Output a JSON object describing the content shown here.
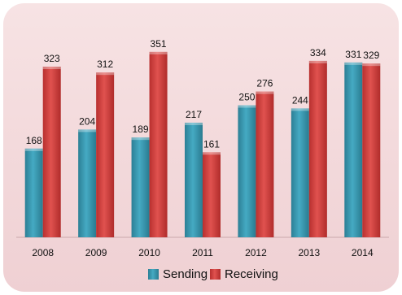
{
  "chart_data": {
    "type": "bar",
    "categories": [
      "2008",
      "2009",
      "2010",
      "2011",
      "2012",
      "2013",
      "2014"
    ],
    "series": [
      {
        "name": "Sending",
        "values": [
          168,
          204,
          189,
          217,
          250,
          244,
          331
        ],
        "color": "#3a9bb3"
      },
      {
        "name": "Receiving",
        "values": [
          323,
          312,
          351,
          161,
          276,
          334,
          329
        ],
        "color": "#d8403f"
      }
    ],
    "ylim": [
      0,
      400
    ],
    "grid": false,
    "legend": "bottom",
    "background_color": "#f2d6d8"
  }
}
